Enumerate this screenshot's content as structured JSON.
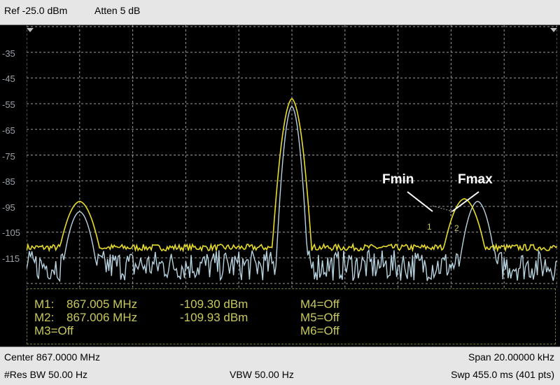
{
  "header": {
    "ref": "Ref -25.0 dBm",
    "atten": "Atten 5 dB"
  },
  "y_labels": [
    "-35",
    "-45",
    "-55",
    "-65",
    "-75",
    "-85",
    "-95",
    "-105",
    "-115"
  ],
  "annotations": {
    "fmin": "Fmin",
    "fmax": "Fmax",
    "m1": "1",
    "m2": "2"
  },
  "markers": {
    "m1": {
      "label": "M1:",
      "freq": "867.005 MHz",
      "amp": "-109.30 dBm"
    },
    "m2": {
      "label": "M2:",
      "freq": "867.006 MHz",
      "amp": "-109.93 dBm"
    },
    "m3": "M3=Off",
    "m4": "M4=Off",
    "m5": "M5=Off",
    "m6": "M6=Off"
  },
  "footer": {
    "center": "Center 867.0000 MHz",
    "span": "Span 20.00000 kHz",
    "res_bw": "#Res BW 50.00  Hz",
    "vbw": "VBW 50.00  Hz",
    "sweep": "Swp 455.0 ms (401 pts)"
  },
  "colors": {
    "max_hold_trace": "#e8dc2a",
    "live_trace": "#b7d3e0",
    "grid": "#9a9a9a"
  },
  "chart_data": {
    "type": "line",
    "x_center_mhz": 867.0,
    "x_span_khz": 20.0,
    "points": 401,
    "y_unit": "dBm",
    "grid": true,
    "series": [
      {
        "description": "max hold",
        "peaks_x_khz": [
          -8.0,
          0.0,
          6.5
        ],
        "peaks_y_dbm": [
          -93,
          -53,
          -92
        ],
        "noise_floor_dbm": -111
      },
      {
        "description": "live",
        "peaks_x_khz": [
          -8.0,
          0.0,
          7.0
        ],
        "peaks_y_dbm": [
          -97,
          -56,
          -93
        ],
        "noise_floor_dbm": -118
      }
    ]
  }
}
